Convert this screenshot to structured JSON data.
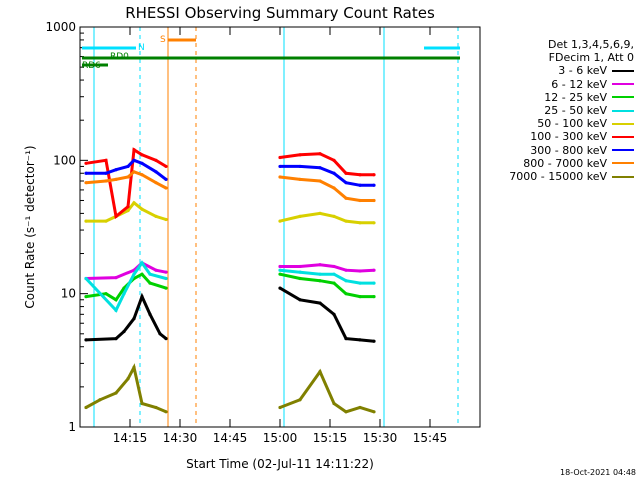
{
  "chart_data": {
    "type": "line",
    "title": "RHESSI Observing Summary Count Rates",
    "xlabel": "Start Time (02-Jul-11 14:11:22)",
    "ylabel": "Count Rate (s⁻¹ detector⁻¹)",
    "y_scale": "log",
    "ylim": [
      1,
      1000
    ],
    "xlim_minutes": [
      14.0,
      16.0
    ],
    "x_ticks": [
      "14:15",
      "14:30",
      "14:45",
      "15:00",
      "15:15",
      "15:30",
      "15:45"
    ],
    "y_ticks": [
      "1",
      "10",
      "100",
      "1000"
    ],
    "legend_header": [
      "Det 1,3,4,5,6,9,",
      "FDecim 1, Att 0"
    ],
    "series": [
      {
        "name": "3 - 6 keV",
        "color": "#000000",
        "points": [
          [
            14.03,
            4.5
          ],
          [
            14.18,
            4.6
          ],
          [
            14.22,
            5.2
          ],
          [
            14.27,
            6.5
          ],
          [
            14.31,
            9.5
          ],
          [
            14.35,
            7
          ],
          [
            14.4,
            5
          ],
          [
            14.43,
            4.6
          ],
          [
            15.0,
            11
          ],
          [
            15.1,
            9
          ],
          [
            15.2,
            8.5
          ],
          [
            15.27,
            7
          ],
          [
            15.33,
            4.6
          ],
          [
            15.4,
            4.5
          ],
          [
            15.47,
            4.4
          ]
        ]
      },
      {
        "name": "6 - 12 keV",
        "color": "#e000e0",
        "points": [
          [
            14.03,
            13
          ],
          [
            14.18,
            13.2
          ],
          [
            14.27,
            15
          ],
          [
            14.31,
            17
          ],
          [
            14.38,
            15
          ],
          [
            14.43,
            14.5
          ],
          [
            15.0,
            16
          ],
          [
            15.1,
            16
          ],
          [
            15.2,
            16.5
          ],
          [
            15.27,
            16
          ],
          [
            15.33,
            15
          ],
          [
            15.4,
            14.8
          ],
          [
            15.47,
            15
          ]
        ]
      },
      {
        "name": "12 - 25 keV",
        "color": "#00d000",
        "points": [
          [
            14.03,
            9.5
          ],
          [
            14.13,
            10
          ],
          [
            14.18,
            9
          ],
          [
            14.22,
            11
          ],
          [
            14.27,
            13
          ],
          [
            14.31,
            14
          ],
          [
            14.35,
            12
          ],
          [
            14.43,
            11
          ],
          [
            15.0,
            14
          ],
          [
            15.1,
            13
          ],
          [
            15.2,
            12.5
          ],
          [
            15.27,
            12
          ],
          [
            15.33,
            10
          ],
          [
            15.4,
            9.5
          ],
          [
            15.47,
            9.5
          ]
        ]
      },
      {
        "name": "25 - 50 keV",
        "color": "#00e0e0",
        "points": [
          [
            14.03,
            13
          ],
          [
            14.18,
            7.5
          ],
          [
            14.22,
            10
          ],
          [
            14.27,
            14
          ],
          [
            14.31,
            17
          ],
          [
            14.35,
            14
          ],
          [
            14.43,
            13
          ],
          [
            15.0,
            15
          ],
          [
            15.1,
            14.5
          ],
          [
            15.2,
            14
          ],
          [
            15.27,
            14
          ],
          [
            15.33,
            12.5
          ],
          [
            15.4,
            12
          ],
          [
            15.47,
            12
          ]
        ]
      },
      {
        "name": "50 - 100 keV",
        "color": "#d8d000",
        "points": [
          [
            14.03,
            35
          ],
          [
            14.13,
            35
          ],
          [
            14.18,
            38
          ],
          [
            14.24,
            42
          ],
          [
            14.27,
            48
          ],
          [
            14.31,
            43
          ],
          [
            14.38,
            38
          ],
          [
            14.43,
            36
          ],
          [
            15.0,
            35
          ],
          [
            15.1,
            38
          ],
          [
            15.2,
            40
          ],
          [
            15.27,
            38
          ],
          [
            15.33,
            35
          ],
          [
            15.4,
            34
          ],
          [
            15.47,
            34
          ]
        ]
      },
      {
        "name": "100 - 300 keV",
        "color": "#ff0000",
        "points": [
          [
            14.03,
            95
          ],
          [
            14.13,
            100
          ],
          [
            14.18,
            38
          ],
          [
            14.24,
            45
          ],
          [
            14.27,
            120
          ],
          [
            14.31,
            110
          ],
          [
            14.38,
            100
          ],
          [
            14.43,
            90
          ],
          [
            15.0,
            105
          ],
          [
            15.1,
            110
          ],
          [
            15.2,
            112
          ],
          [
            15.27,
            100
          ],
          [
            15.33,
            80
          ],
          [
            15.4,
            78
          ],
          [
            15.47,
            78
          ]
        ]
      },
      {
        "name": "300 - 800 keV",
        "color": "#0000ff",
        "points": [
          [
            14.03,
            80
          ],
          [
            14.13,
            80
          ],
          [
            14.18,
            85
          ],
          [
            14.24,
            90
          ],
          [
            14.27,
            100
          ],
          [
            14.31,
            95
          ],
          [
            14.38,
            82
          ],
          [
            14.43,
            72
          ],
          [
            15.0,
            90
          ],
          [
            15.1,
            90
          ],
          [
            15.2,
            88
          ],
          [
            15.27,
            80
          ],
          [
            15.33,
            68
          ],
          [
            15.4,
            65
          ],
          [
            15.47,
            65
          ]
        ]
      },
      {
        "name": "800 - 7000 keV",
        "color": "#ff8000",
        "points": [
          [
            14.03,
            68
          ],
          [
            14.13,
            70
          ],
          [
            14.18,
            72
          ],
          [
            14.24,
            75
          ],
          [
            14.27,
            82
          ],
          [
            14.31,
            78
          ],
          [
            14.38,
            68
          ],
          [
            14.43,
            62
          ],
          [
            15.0,
            75
          ],
          [
            15.1,
            72
          ],
          [
            15.2,
            70
          ],
          [
            15.27,
            62
          ],
          [
            15.33,
            52
          ],
          [
            15.4,
            50
          ],
          [
            15.47,
            50
          ]
        ]
      },
      {
        "name": "7000 - 15000 keV",
        "color": "#808000",
        "points": [
          [
            14.03,
            1.4
          ],
          [
            14.1,
            1.6
          ],
          [
            14.18,
            1.8
          ],
          [
            14.24,
            2.3
          ],
          [
            14.27,
            2.8
          ],
          [
            14.31,
            1.5
          ],
          [
            14.38,
            1.4
          ],
          [
            14.43,
            1.3
          ],
          [
            15.0,
            1.4
          ],
          [
            15.1,
            1.6
          ],
          [
            15.2,
            2.6
          ],
          [
            15.27,
            1.5
          ],
          [
            15.33,
            1.3
          ],
          [
            15.4,
            1.4
          ],
          [
            15.47,
            1.3
          ]
        ]
      }
    ],
    "flag_bars": [
      {
        "label": "N",
        "color": "#00e0ff"
      },
      {
        "label": "S",
        "color": "#ff8000"
      },
      {
        "label": "RD0",
        "color": "#008000"
      },
      {
        "label": "RD6",
        "color": "#008000"
      }
    ],
    "grid": false,
    "legend_position": "right"
  },
  "footer": {
    "timestamp": "18-Oct-2021 04:48"
  }
}
